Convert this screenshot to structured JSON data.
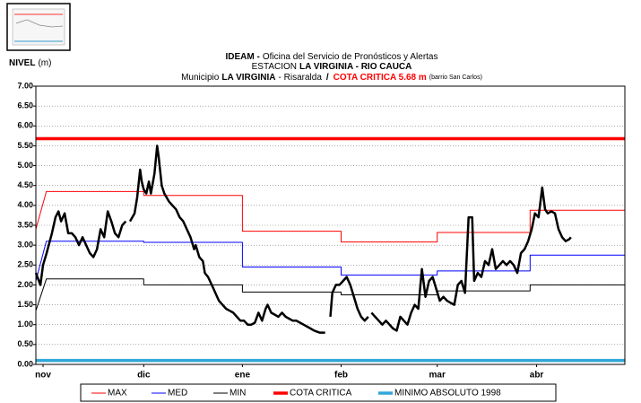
{
  "chart_data": {
    "type": "line",
    "title_lines": [
      [
        "IDEAM -",
        "Oficina del Servicio de Pronósticos y Alertas"
      ],
      [
        "ESTACION",
        "LA VIRGINIA - RIO CAUCA"
      ],
      [
        "Municipio",
        "LA VIRGINIA",
        "- Risaralda",
        "/",
        "COTA CRITICA 5.68 m",
        "(barrio San Carlos)"
      ]
    ],
    "y_label": [
      "NIVEL",
      "(m)"
    ],
    "xlim": [
      -2.2,
      178
    ],
    "xticks": [
      {
        "value": 0,
        "label": "nov"
      },
      {
        "value": 30.8,
        "label": "dic"
      },
      {
        "value": 61,
        "label": "ene"
      },
      {
        "value": 91.2,
        "label": "feb"
      },
      {
        "value": 120.6,
        "label": "mar"
      },
      {
        "value": 151,
        "label": "abr"
      }
    ],
    "ylim": [
      0,
      7
    ],
    "yticks": [
      {
        "value": 0,
        "label": "0.00"
      },
      {
        "value": 0.5,
        "label": "0.50"
      },
      {
        "value": 1,
        "label": "1.00"
      },
      {
        "value": 1.5,
        "label": "1.50"
      },
      {
        "value": 2,
        "label": "2.00"
      },
      {
        "value": 2.5,
        "label": "2.50"
      },
      {
        "value": 3,
        "label": "3.00"
      },
      {
        "value": 3.5,
        "label": "3.50"
      },
      {
        "value": 4,
        "label": "4.00"
      },
      {
        "value": 4.5,
        "label": "4.50"
      },
      {
        "value": 5,
        "label": "5.00"
      },
      {
        "value": 5.5,
        "label": "5.50"
      },
      {
        "value": 6,
        "label": "6.00"
      },
      {
        "value": 6.5,
        "label": "6.50"
      },
      {
        "value": 7,
        "label": "7.00"
      }
    ],
    "grid": true,
    "series": [
      {
        "name": "MAX",
        "color": "#ff0000",
        "width": 1,
        "x": [
          -2.2,
          1,
          30.8,
          30.8,
          61,
          61,
          91.2,
          91.2,
          120.6,
          120.6,
          149,
          149,
          178
        ],
        "values": [
          3.4,
          4.35,
          4.35,
          4.25,
          4.25,
          3.35,
          3.35,
          3.08,
          3.08,
          3.32,
          3.32,
          3.88,
          3.88
        ]
      },
      {
        "name": "MED",
        "color": "#0000ff",
        "width": 1,
        "x": [
          -2.2,
          1,
          30.8,
          30.8,
          61,
          61,
          91.2,
          91.2,
          120.6,
          120.6,
          149,
          149,
          178
        ],
        "values": [
          2.1,
          3.1,
          3.1,
          3.07,
          3.07,
          2.45,
          2.45,
          2.25,
          2.25,
          2.35,
          2.35,
          2.75,
          2.75
        ]
      },
      {
        "name": "MIN",
        "color": "#000000",
        "width": 1,
        "x": [
          -2.2,
          1,
          30.8,
          30.8,
          61,
          61,
          91.2,
          91.2,
          120.6,
          120.6,
          149,
          149,
          178
        ],
        "values": [
          1.35,
          2.15,
          2.15,
          2.0,
          2.0,
          1.82,
          1.82,
          1.75,
          1.75,
          1.85,
          1.85,
          2.0,
          2.0
        ]
      },
      {
        "name": "COTA CRITICA",
        "color": "#ff0000",
        "width": 3.5,
        "x": [
          -2.2,
          178
        ],
        "values": [
          5.68,
          5.68
        ]
      },
      {
        "name": "MINIMO ABSOLUTO 1998",
        "color": "#33a6d8",
        "width": 3.5,
        "x": [
          -2.2,
          178
        ],
        "values": [
          0.1,
          0.1
        ]
      }
    ],
    "observed": {
      "color": "#000000",
      "width": 2.5,
      "x": [
        -2.2,
        -0.8,
        0,
        1.1,
        2.7,
        3.8,
        4.7,
        5.5,
        6.6,
        7.7,
        8.8,
        9.9,
        11.0,
        12.1,
        13.2,
        14.3,
        15.4,
        16.5,
        17.6,
        18.7,
        19.8,
        20.9,
        22.0,
        23.1,
        24.2,
        25.3,
        26.0,
        26.6,
        28.0,
        28.8,
        29.7,
        30.2,
        30.8,
        31.6,
        32.4,
        33.0,
        34.1,
        34.9,
        35.4,
        36.3,
        37.1,
        38.5,
        39.6,
        40.7,
        41.8,
        42.9,
        44.0,
        45.1,
        46.2,
        46.7,
        47.8,
        48.9,
        49.5,
        50.5,
        51.6,
        52.7,
        53.8,
        54.9,
        56.0,
        57.1,
        58.2,
        59.3,
        60.4,
        61.5,
        62.6,
        63.7,
        64.8,
        65.9,
        67.0,
        68.1,
        68.7,
        69.8,
        70.9,
        72.0,
        73.1,
        74.2,
        75.3,
        76.4,
        77.5,
        78.6,
        79.7,
        80.8,
        81.9,
        83.0,
        84.6,
        86.3,
        87.0,
        87.9,
        88.5,
        89.6,
        90.7,
        91.8,
        92.9,
        94.0,
        95.1,
        96.2,
        97.3,
        98.4,
        99.5,
        100.0,
        100.5,
        101.6,
        102.7,
        103.8,
        104.9,
        106.0,
        107.1,
        108.2,
        109.3,
        110.4,
        111.5,
        112.6,
        113.7,
        114.8,
        115.9,
        117.0,
        118.1,
        119.2,
        120.3,
        121.4,
        122.5,
        123.6,
        124.7,
        125.8,
        126.9,
        128.0,
        129.1,
        130.2,
        131.3,
        131.9,
        133.0,
        134.1,
        135.2,
        136.3,
        137.4,
        138.5,
        139.6,
        140.7,
        141.8,
        142.9,
        144.0,
        145.1,
        146.2,
        147.3,
        148.4,
        149.5,
        150.5,
        151.6,
        152.7,
        153.6,
        154.4,
        155.5,
        156.6,
        157.7,
        158.8,
        159.9,
        161.0,
        161.5
      ],
      "values": [
        2.3,
        2.0,
        2.5,
        2.8,
        3.3,
        3.7,
        3.85,
        3.6,
        3.8,
        3.3,
        3.3,
        3.2,
        3.0,
        3.2,
        3.0,
        2.8,
        2.7,
        2.9,
        3.4,
        3.2,
        3.85,
        3.6,
        3.3,
        3.2,
        3.5,
        3.6,
        null,
        3.6,
        3.8,
        4.2,
        4.9,
        4.6,
        4.4,
        4.3,
        4.6,
        4.3,
        4.8,
        5.5,
        5.2,
        4.5,
        4.3,
        4.1,
        4.0,
        3.9,
        3.7,
        3.6,
        3.4,
        3.2,
        2.9,
        3.0,
        2.7,
        2.6,
        2.3,
        2.2,
        2.0,
        1.8,
        1.6,
        1.5,
        1.4,
        1.35,
        1.3,
        1.2,
        1.1,
        1.1,
        1.0,
        1.0,
        1.05,
        1.3,
        1.1,
        1.4,
        1.5,
        1.3,
        1.25,
        1.2,
        1.3,
        1.2,
        1.15,
        1.1,
        1.1,
        1.05,
        1.0,
        0.95,
        0.9,
        0.85,
        0.8,
        0.8,
        null,
        1.2,
        1.8,
        2.0,
        2.0,
        2.1,
        2.2,
        2.0,
        1.7,
        1.4,
        1.2,
        1.1,
        1.2,
        null,
        1.3,
        1.2,
        1.1,
        1.0,
        1.1,
        1.0,
        0.9,
        0.85,
        1.2,
        1.1,
        1.0,
        1.3,
        1.5,
        1.4,
        2.4,
        1.7,
        2.1,
        2.2,
        1.9,
        1.6,
        1.7,
        1.6,
        1.55,
        1.5,
        2.0,
        2.1,
        1.8,
        3.7,
        3.7,
        2.1,
        2.3,
        2.2,
        2.6,
        2.5,
        2.9,
        2.4,
        2.5,
        2.6,
        2.5,
        2.6,
        2.5,
        2.3,
        2.8,
        2.9,
        3.1,
        3.4,
        3.8,
        3.7,
        4.45,
        3.9,
        3.8,
        3.85,
        3.8,
        3.4,
        3.2,
        3.1,
        3.15,
        3.2
      ]
    }
  }
}
